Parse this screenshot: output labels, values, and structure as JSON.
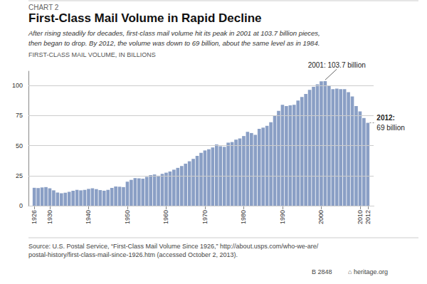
{
  "chart_data": {
    "type": "bar",
    "chart_label": "CHART 2",
    "title": "First-Class Mail Volume in Rapid Decline",
    "subtitle": "After rising steadily for decades, first-class mail volume hit its peak in 2001 at 103.7 billion pieces,\nthen began to drop. By 2012, the volume was down to 69 billion, about the same level as in 1984.",
    "ylabel": "FIRST-CLASS MAIL VOLUME, IN BILLIONS",
    "source": "Source: U.S. Postal Service, “First-Class Mail Volume Since 1926,” http://about.usps.com/who-we-are/\npostal-history/first-class-mail-since-1926.htm (accessed October 2, 2013).",
    "badge": "B 2848",
    "logo": "⌂ heritage.org",
    "color": "#8a9fc5",
    "x": [
      1926,
      1927,
      1928,
      1929,
      1930,
      1931,
      1932,
      1933,
      1934,
      1935,
      1936,
      1937,
      1938,
      1939,
      1940,
      1941,
      1942,
      1943,
      1944,
      1945,
      1946,
      1947,
      1948,
      1949,
      1950,
      1951,
      1952,
      1953,
      1954,
      1955,
      1956,
      1957,
      1958,
      1959,
      1960,
      1961,
      1962,
      1963,
      1964,
      1965,
      1966,
      1967,
      1968,
      1969,
      1970,
      1971,
      1972,
      1973,
      1974,
      1975,
      1976,
      1977,
      1978,
      1979,
      1980,
      1981,
      1982,
      1983,
      1984,
      1985,
      1986,
      1987,
      1988,
      1989,
      1990,
      1991,
      1992,
      1993,
      1994,
      1995,
      1996,
      1997,
      1998,
      1999,
      2000,
      2001,
      2002,
      2003,
      2004,
      2005,
      2006,
      2007,
      2008,
      2009,
      2010,
      2011,
      2012
    ],
    "values": [
      14.9,
      14.7,
      15.2,
      15.5,
      14.5,
      12.8,
      11.0,
      10.3,
      10.8,
      11.5,
      12.5,
      13.2,
      12.8,
      13.2,
      14.0,
      14.5,
      13.8,
      13.0,
      12.5,
      13.2,
      14.8,
      16.0,
      15.8,
      15.5,
      20.0,
      21.5,
      23.0,
      22.8,
      22.5,
      24.0,
      25.5,
      26.0,
      25.0,
      26.5,
      27.5,
      28.5,
      30.0,
      31.5,
      33.0,
      35.0,
      37.0,
      39.0,
      41.5,
      44.0,
      46.0,
      47.0,
      48.5,
      51.0,
      49.5,
      49.0,
      52.5,
      53.0,
      55.0,
      56.0,
      58.0,
      61.5,
      60.5,
      59.0,
      64.0,
      65.0,
      66.5,
      69.5,
      75.0,
      79.0,
      84.0,
      83.0,
      83.5,
      84.0,
      87.5,
      90.5,
      93.0,
      96.5,
      99.0,
      101.0,
      103.5,
      103.7,
      100.0,
      97.0,
      97.5,
      97.0,
      97.0,
      94.5,
      91.0,
      83.0,
      78.5,
      73.0,
      69.0
    ],
    "xlim": [
      1924.5,
      2013.5
    ],
    "xticks": [
      1926,
      1930,
      1940,
      1950,
      1960,
      1970,
      1980,
      1990,
      2000,
      2010,
      2012
    ],
    "ylim": [
      0,
      112
    ],
    "yticks": [
      0,
      25,
      50,
      75,
      100
    ],
    "grid": true,
    "annotations": [
      {
        "text": "2001: 103.7 billion",
        "x": 2001,
        "y": 103.7
      },
      {
        "text": "2012:\n69 billion",
        "x": 2012,
        "y": 69
      }
    ]
  }
}
